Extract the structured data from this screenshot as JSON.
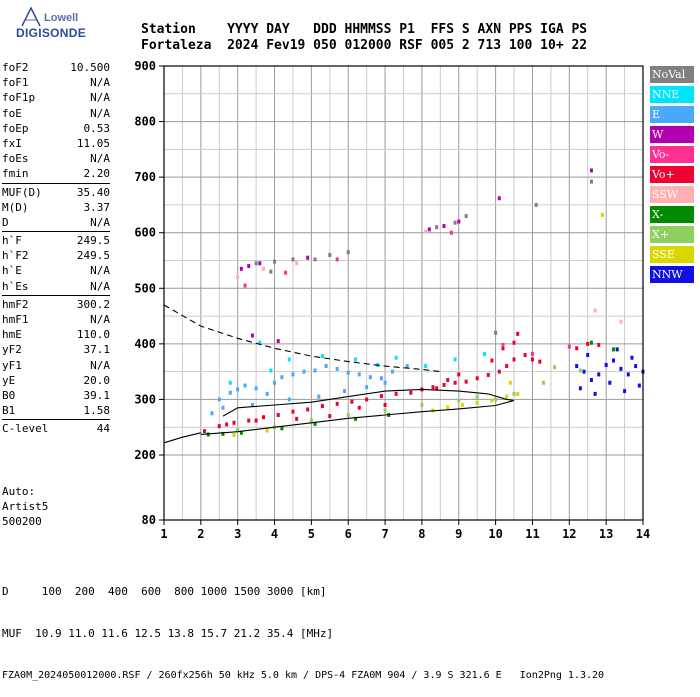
{
  "logo": {
    "line1": "Lowell",
    "line2": "DIGISONDE"
  },
  "header": {
    "line1": "Station    YYYY DAY   DDD HHMMSS P1  FFS S AXN PPS IGA PS",
    "line2": "Fortaleza  2024 Fev19 050 012000 RSF 005 2 713 100 10+ 22"
  },
  "params": [
    {
      "label": "foF2",
      "value": "10.500"
    },
    {
      "label": "foF1",
      "value": "N/A"
    },
    {
      "label": "foF1p",
      "value": "N/A"
    },
    {
      "label": "foE",
      "value": "N/A"
    },
    {
      "label": "foEp",
      "value": "0.53"
    },
    {
      "label": "fxI",
      "value": "11.05"
    },
    {
      "label": "foEs",
      "value": "N/A"
    },
    {
      "label": "fmin",
      "value": "2.20"
    },
    {
      "sep": true
    },
    {
      "label": "MUF(D)",
      "value": "35.40"
    },
    {
      "label": "M(D)",
      "value": "3.37"
    },
    {
      "label": "D",
      "value": "N/A"
    },
    {
      "sep": true
    },
    {
      "label": "h`F",
      "value": "249.5"
    },
    {
      "label": "h`F2",
      "value": "249.5"
    },
    {
      "label": "h`E",
      "value": "N/A"
    },
    {
      "label": "h`Es",
      "value": "N/A"
    },
    {
      "sep": true
    },
    {
      "label": "hmF2",
      "value": "300.2"
    },
    {
      "label": "hmF1",
      "value": "N/A"
    },
    {
      "label": "hmE",
      "value": "110.0"
    },
    {
      "label": "yF2",
      "value": "37.1"
    },
    {
      "label": "yF1",
      "value": "N/A"
    },
    {
      "label": "yE",
      "value": "20.0"
    },
    {
      "label": "B0",
      "value": "39.1"
    },
    {
      "label": "B1",
      "value": "1.58"
    },
    {
      "sep": true
    },
    {
      "label": "C-level",
      "value": "44"
    }
  ],
  "auto": {
    "line1": "Auto:",
    "line2": "Artist5",
    "line3": "500200"
  },
  "legend": [
    {
      "label": "NoVal",
      "color": "#808080"
    },
    {
      "label": "NNE",
      "color": "#00e5ff"
    },
    {
      "label": "E",
      "color": "#4aa8ff"
    },
    {
      "label": "W",
      "color": "#b000b0"
    },
    {
      "label": "Vo-",
      "color": "#ff3090"
    },
    {
      "label": "Vo+",
      "color": "#ee0030"
    },
    {
      "label": "SSW",
      "color": "#ffb0b0"
    },
    {
      "label": "X-",
      "color": "#008a00"
    },
    {
      "label": "X+",
      "color": "#8ed060"
    },
    {
      "label": "SSE",
      "color": "#d8d800"
    },
    {
      "label": "NNW",
      "color": "#1010e0"
    }
  ],
  "footer": {
    "line1": "D     100  200  400  600  800 1000 1500 3000 [km]",
    "line2": "MUF  10.9 11.0 11.6 12.5 13.8 15.7 21.2 35.4 [MHz]",
    "line3": "FZA0M_2024050012000.RSF / 260fx256h 50 kHz 5.0 km / DPS-4 FZA0M 904 / 3.9 S 321.6 E   Ion2Png 1.3.20"
  },
  "chart_data": {
    "type": "scatter",
    "title": "",
    "xlabel": "",
    "ylabel": "",
    "xlim": [
      1,
      14
    ],
    "ylim": [
      80,
      900
    ],
    "x_ticks": [
      1,
      2,
      3,
      4,
      5,
      6,
      7,
      8,
      9,
      10,
      11,
      12,
      13,
      14
    ],
    "y_ticks": [
      80,
      200,
      300,
      400,
      500,
      600,
      700,
      800,
      900
    ],
    "y_scale": "nonlinear (80 at bottom, then linear 100 km steps from 200 to 900)",
    "grid": true,
    "legend_position": "right",
    "series": [
      {
        "color_key": "Vo+",
        "points": [
          [
            2.1,
            243
          ],
          [
            2.5,
            252
          ],
          [
            2.9,
            258
          ],
          [
            3.3,
            262
          ],
          [
            3.7,
            268
          ],
          [
            4.1,
            272
          ],
          [
            4.5,
            278
          ],
          [
            4.9,
            282
          ],
          [
            5.3,
            288
          ],
          [
            5.7,
            292
          ],
          [
            6.1,
            296
          ],
          [
            6.5,
            300
          ],
          [
            6.9,
            306
          ],
          [
            7.3,
            310
          ],
          [
            7.7,
            312
          ],
          [
            8.0,
            318
          ],
          [
            8.3,
            322
          ],
          [
            8.6,
            326
          ],
          [
            8.9,
            330
          ],
          [
            9.2,
            332
          ],
          [
            9.5,
            338
          ],
          [
            9.8,
            344
          ],
          [
            10.1,
            350
          ],
          [
            10.3,
            360
          ],
          [
            10.5,
            372
          ],
          [
            10.8,
            380
          ],
          [
            11.0,
            372
          ],
          [
            11.2,
            368
          ],
          [
            12.2,
            392
          ],
          [
            12.5,
            400
          ],
          [
            12.8,
            398
          ],
          [
            8.4,
            320
          ],
          [
            8.7,
            335
          ],
          [
            9.0,
            345
          ],
          [
            7.0,
            290
          ],
          [
            6.3,
            285
          ],
          [
            5.5,
            270
          ],
          [
            4.6,
            265
          ],
          [
            3.5,
            262
          ],
          [
            2.7,
            255
          ],
          [
            9.9,
            370
          ],
          [
            10.2,
            392
          ],
          [
            10.5,
            402
          ],
          [
            10.6,
            418
          ]
        ]
      },
      {
        "color_key": "E",
        "points": [
          [
            2.5,
            300
          ],
          [
            2.8,
            312
          ],
          [
            3.0,
            318
          ],
          [
            3.2,
            325
          ],
          [
            3.5,
            320
          ],
          [
            3.8,
            310
          ],
          [
            4.0,
            330
          ],
          [
            4.2,
            340
          ],
          [
            4.5,
            345
          ],
          [
            4.8,
            350
          ],
          [
            5.1,
            352
          ],
          [
            5.4,
            360
          ],
          [
            5.7,
            355
          ],
          [
            6.0,
            348
          ],
          [
            6.3,
            345
          ],
          [
            6.6,
            340
          ],
          [
            6.9,
            338
          ],
          [
            7.2,
            350
          ],
          [
            7.6,
            360
          ],
          [
            2.3,
            275
          ],
          [
            2.6,
            285
          ],
          [
            3.4,
            290
          ],
          [
            4.4,
            300
          ],
          [
            5.2,
            305
          ],
          [
            5.9,
            315
          ],
          [
            6.5,
            322
          ],
          [
            7.0,
            330
          ]
        ]
      },
      {
        "color_key": "NNE",
        "points": [
          [
            3.6,
            402
          ],
          [
            4.4,
            372
          ],
          [
            5.3,
            378
          ],
          [
            6.2,
            372
          ],
          [
            7.3,
            375
          ],
          [
            8.1,
            360
          ],
          [
            8.9,
            372
          ],
          [
            9.7,
            382
          ],
          [
            2.8,
            330
          ],
          [
            3.9,
            352
          ],
          [
            6.8,
            362
          ]
        ]
      },
      {
        "color_key": "NNW",
        "points": [
          [
            12.2,
            360
          ],
          [
            12.4,
            350
          ],
          [
            12.6,
            335
          ],
          [
            12.8,
            345
          ],
          [
            13.0,
            362
          ],
          [
            13.2,
            370
          ],
          [
            13.4,
            355
          ],
          [
            13.6,
            345
          ],
          [
            13.8,
            360
          ],
          [
            14.0,
            350
          ],
          [
            12.3,
            320
          ],
          [
            12.7,
            310
          ],
          [
            13.1,
            330
          ],
          [
            13.5,
            315
          ],
          [
            13.9,
            325
          ],
          [
            12.5,
            380
          ],
          [
            13.3,
            390
          ],
          [
            13.7,
            375
          ]
        ]
      },
      {
        "color_key": "X+",
        "points": [
          [
            3.0,
            245
          ],
          [
            4.0,
            250
          ],
          [
            5.0,
            262
          ],
          [
            6.0,
            272
          ],
          [
            7.0,
            280
          ],
          [
            8.0,
            290
          ],
          [
            9.0,
            298
          ],
          [
            10.0,
            300
          ],
          [
            10.5,
            310
          ],
          [
            11.3,
            330
          ],
          [
            11.6,
            358
          ],
          [
            12.3,
            352
          ],
          [
            9.5,
            305
          ]
        ]
      },
      {
        "color_key": "SSE",
        "points": [
          [
            8.3,
            280
          ],
          [
            8.7,
            286
          ],
          [
            9.1,
            290
          ],
          [
            9.5,
            294
          ],
          [
            9.9,
            298
          ],
          [
            10.3,
            305
          ],
          [
            10.6,
            310
          ],
          [
            2.9,
            236
          ],
          [
            3.8,
            244
          ],
          [
            12.9,
            632
          ],
          [
            10.4,
            330
          ]
        ]
      },
      {
        "color_key": "X-",
        "points": [
          [
            2.2,
            237
          ],
          [
            2.6,
            238
          ],
          [
            3.1,
            240
          ],
          [
            4.2,
            248
          ],
          [
            5.1,
            256
          ],
          [
            6.2,
            265
          ],
          [
            7.1,
            272
          ],
          [
            12.6,
            402
          ],
          [
            13.2,
            390
          ]
        ]
      },
      {
        "color_key": "W",
        "points": [
          [
            3.1,
            535
          ],
          [
            3.3,
            540
          ],
          [
            3.6,
            545
          ],
          [
            4.9,
            555
          ],
          [
            8.2,
            606
          ],
          [
            8.6,
            612
          ],
          [
            9.0,
            620
          ],
          [
            10.1,
            662
          ],
          [
            3.4,
            415
          ],
          [
            4.1,
            405
          ],
          [
            12.6,
            712
          ]
        ]
      },
      {
        "color_key": "NoVal",
        "points": [
          [
            3.5,
            545
          ],
          [
            4.0,
            548
          ],
          [
            4.5,
            552
          ],
          [
            5.1,
            552
          ],
          [
            5.5,
            560
          ],
          [
            6.0,
            565
          ],
          [
            8.4,
            610
          ],
          [
            8.9,
            618
          ],
          [
            9.2,
            630
          ],
          [
            11.1,
            650
          ],
          [
            12.6,
            692
          ],
          [
            3.9,
            530
          ],
          [
            10.0,
            420
          ]
        ]
      },
      {
        "color_key": "SSW",
        "points": [
          [
            3.0,
            520
          ],
          [
            3.7,
            535
          ],
          [
            4.6,
            545
          ],
          [
            8.1,
            602
          ],
          [
            12.7,
            460
          ],
          [
            13.4,
            440
          ]
        ]
      },
      {
        "color_key": "Vo-",
        "points": [
          [
            3.2,
            505
          ],
          [
            4.3,
            528
          ],
          [
            5.7,
            552
          ],
          [
            8.8,
            600
          ],
          [
            10.2,
            398
          ],
          [
            11.0,
            382
          ],
          [
            12.0,
            395
          ]
        ]
      }
    ],
    "curves": [
      {
        "name": "profile_lower",
        "style": "solid",
        "points": [
          [
            2.0,
            237
          ],
          [
            3.0,
            242
          ],
          [
            4.0,
            250
          ],
          [
            5.0,
            258
          ],
          [
            6.0,
            266
          ],
          [
            7.0,
            272
          ],
          [
            8.0,
            278
          ],
          [
            9.0,
            283
          ],
          [
            10.0,
            289
          ],
          [
            10.5,
            298
          ]
        ]
      },
      {
        "name": "profile_upper",
        "style": "solid",
        "points": [
          [
            10.5,
            298
          ],
          [
            10.3,
            300
          ],
          [
            9.8,
            310
          ],
          [
            9.0,
            315
          ],
          [
            8.0,
            318
          ],
          [
            7.0,
            315
          ],
          [
            6.0,
            305
          ],
          [
            5.0,
            295
          ],
          [
            4.0,
            290
          ],
          [
            3.0,
            285
          ],
          [
            2.6,
            270
          ]
        ]
      },
      {
        "name": "mufline",
        "style": "solid",
        "points": [
          [
            1.0,
            222
          ],
          [
            1.5,
            232
          ],
          [
            2.0,
            240
          ]
        ]
      },
      {
        "name": "secant_dashed",
        "style": "dashed",
        "points": [
          [
            1.0,
            470
          ],
          [
            2.0,
            432
          ],
          [
            3.0,
            410
          ],
          [
            4.0,
            392
          ],
          [
            5.0,
            378
          ],
          [
            6.0,
            368
          ],
          [
            7.0,
            360
          ],
          [
            8.0,
            354
          ],
          [
            8.5,
            350
          ]
        ]
      }
    ]
  }
}
